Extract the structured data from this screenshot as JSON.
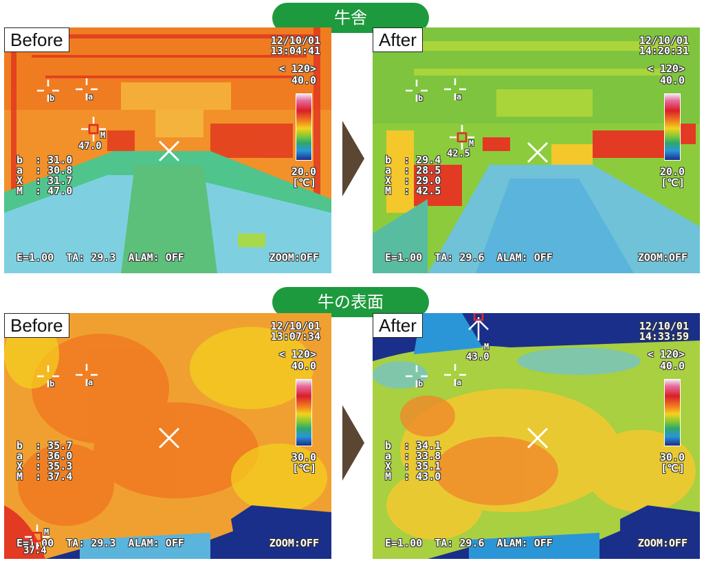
{
  "sections": {
    "barn": "牛舎",
    "cow_surface": "牛の表面"
  },
  "panels": {
    "barn_before": {
      "label": "Before",
      "date": "12/10/01",
      "time": "13:04:41",
      "level": "< 120>",
      "max": "40.0",
      "min": "20.0",
      "unit": "[℃]",
      "readings": [
        "b  : 31.0",
        "a  : 30.8",
        "X  : 31.7",
        "M  : 47.0"
      ],
      "marker_m": "47.0",
      "bottom": "E=1.00  TA: 29.3  ALAM: OFF",
      "zoom": "ZOOM:OFF"
    },
    "barn_after": {
      "label": "After",
      "date": "12/10/01",
      "time": "14:20:31",
      "level": "< 120>",
      "max": "40.0",
      "min": "20.0",
      "unit": "[℃]",
      "readings": [
        "b  : 29.4",
        "a  : 28.5",
        "X  : 29.0",
        "M  : 42.5"
      ],
      "marker_m": "42.5",
      "bottom": "E=1.00  TA: 29.6  ALAM: OFF",
      "zoom": "ZOOM:OFF"
    },
    "cow_before": {
      "label": "Before",
      "date": "12/10/01",
      "time": "13:07:34",
      "level": "< 120>",
      "max": "40.0",
      "min": "30.0",
      "unit": "[℃]",
      "readings": [
        "b  : 35.7",
        "a  : 36.0",
        "X  : 35.3",
        "M  : 37.4"
      ],
      "marker_m": "37.4",
      "bottom": "E=1.00  TA: 29.3  ALAM: OFF",
      "zoom": "ZOOM:OFF"
    },
    "cow_after": {
      "label": "After",
      "date": "12/10/01",
      "time": "14:33:59",
      "level": "< 120>",
      "max": "40.0",
      "min": "30.0",
      "unit": "[℃]",
      "readings": [
        "b  : 34.1",
        "a  : 33.8",
        "X  : 35.1",
        "M  : 43.0"
      ],
      "marker_m": "43.0",
      "bottom": "E=1.00  TA: 29.6  ALAM: OFF",
      "zoom": "ZOOM:OFF"
    }
  },
  "marker_letters": {
    "a": "a",
    "b": "b",
    "m": "M"
  },
  "colors": {
    "section_green": "#1e9a3e",
    "arrow_brown": "#5a4632"
  }
}
